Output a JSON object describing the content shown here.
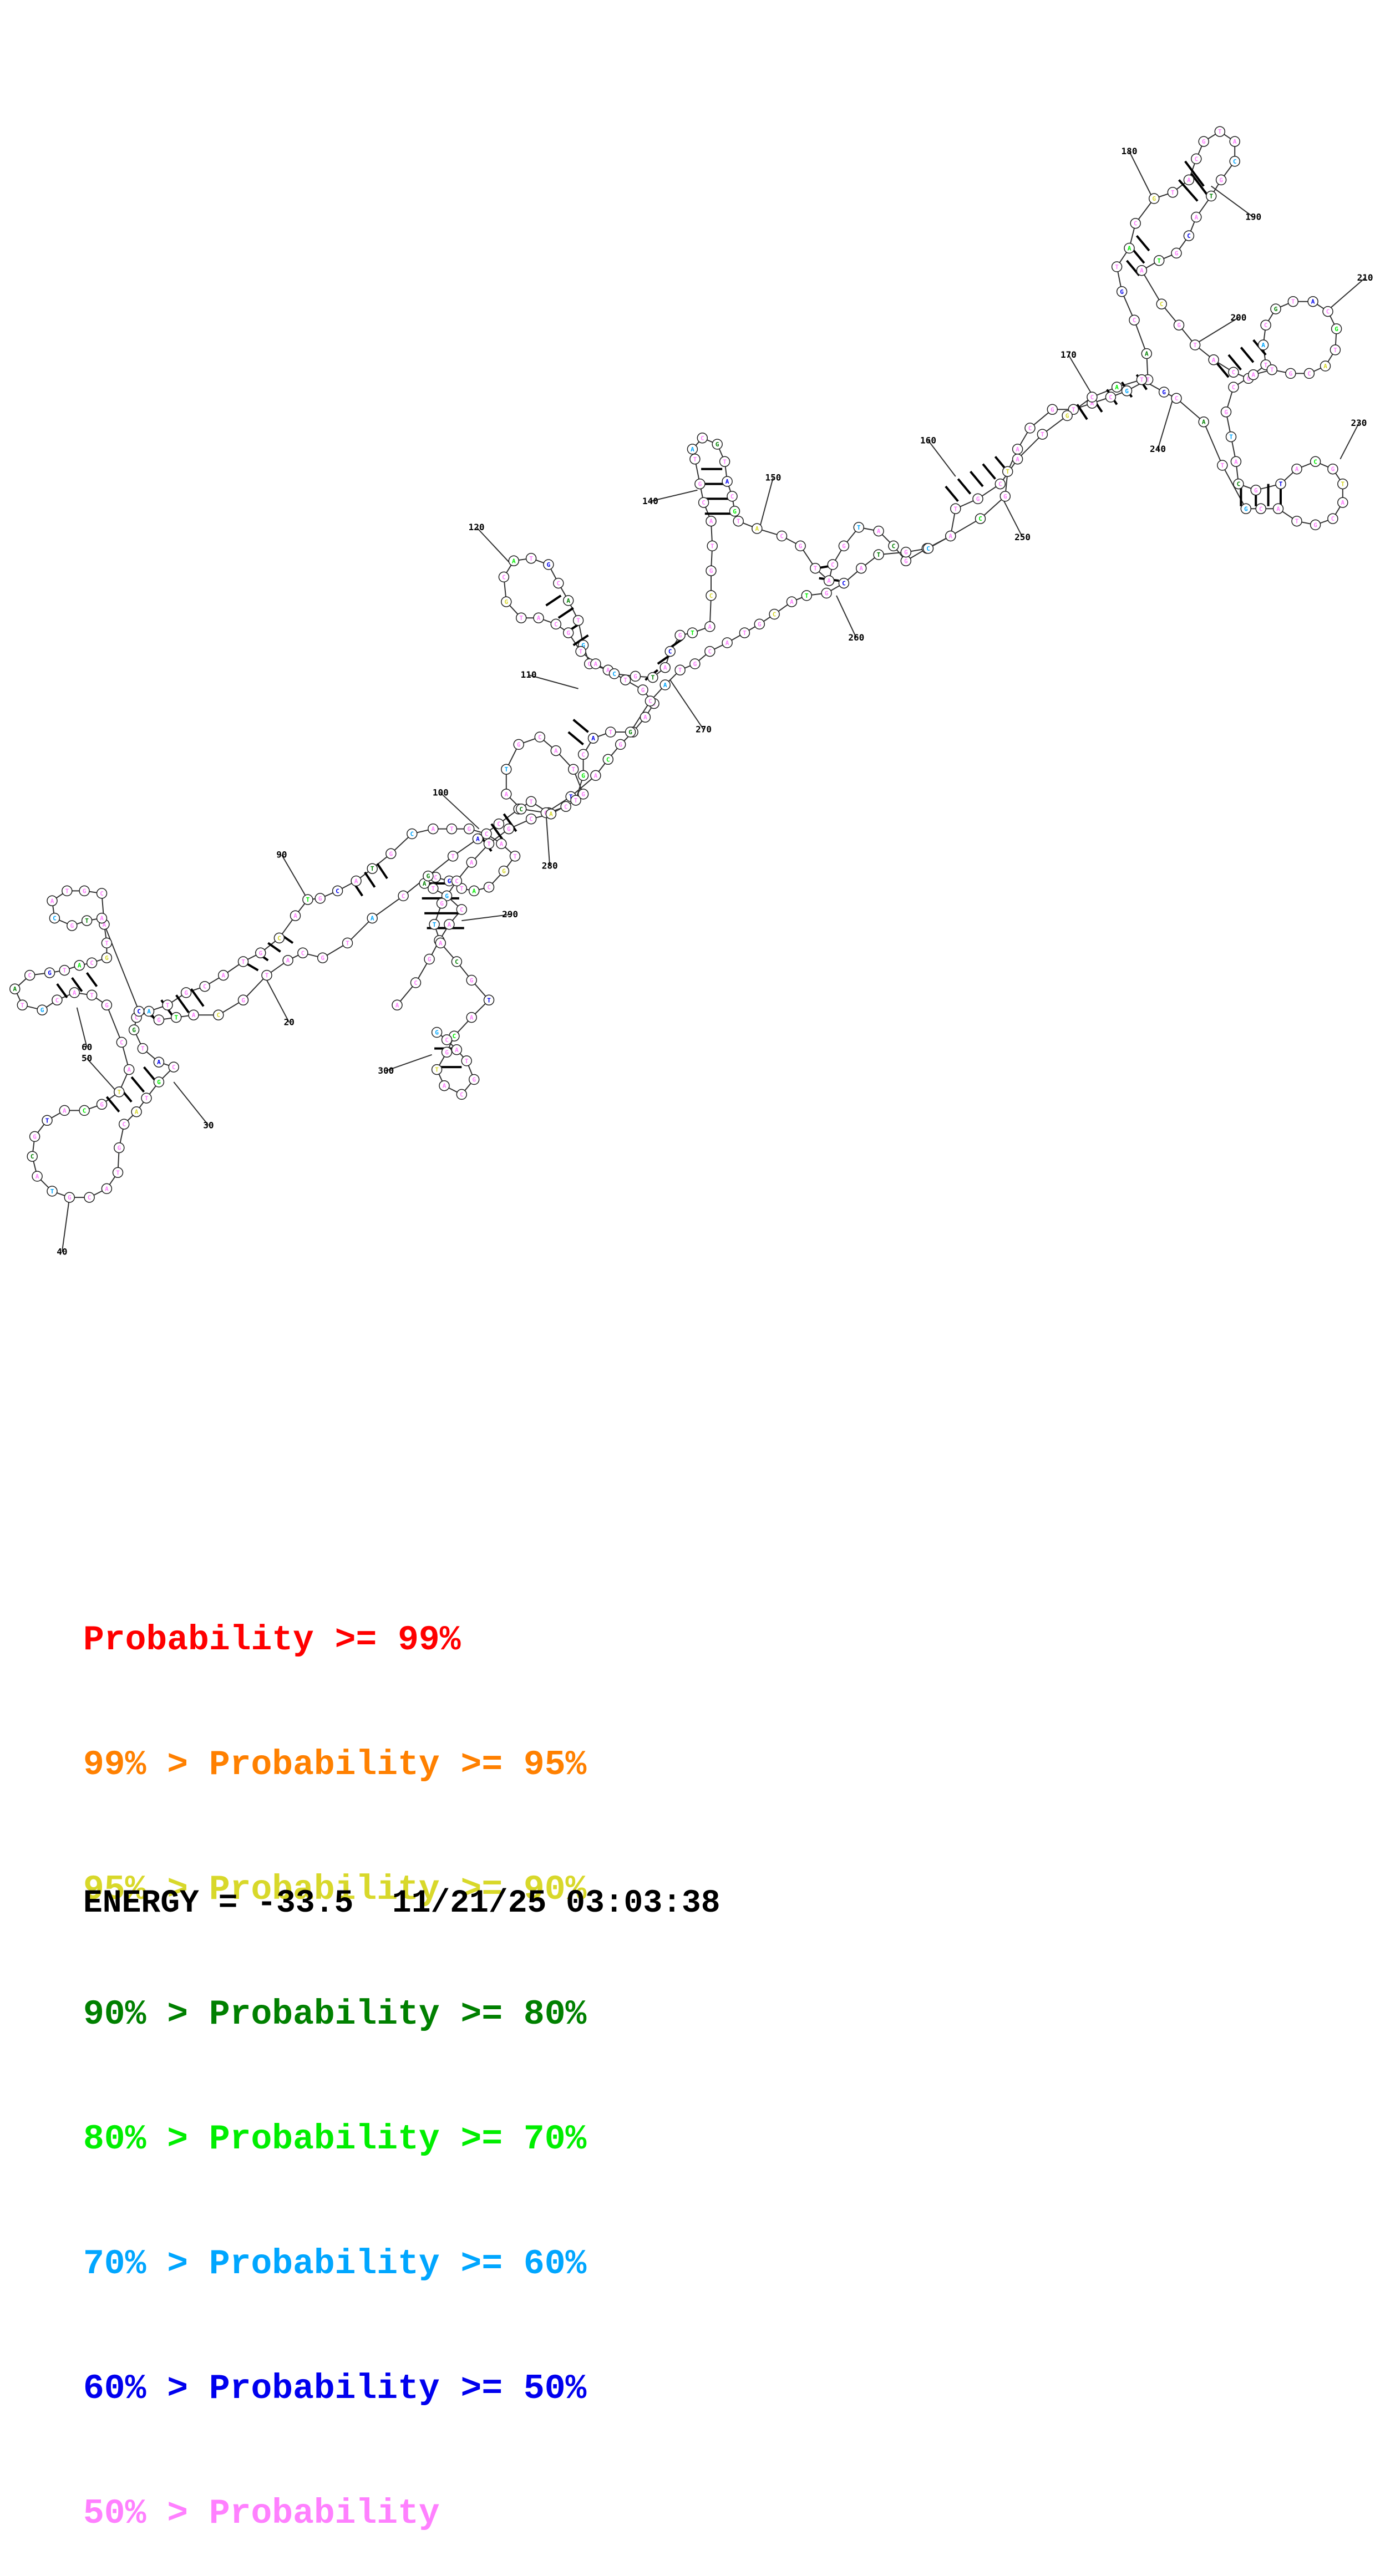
{
  "diagram": {
    "colors": {
      "p99": "#ff0000",
      "p95": "#ff8000",
      "p90": "#d8d82a",
      "p80": "#008000",
      "p70": "#00ee00",
      "p60": "#00a6ff",
      "p50": "#0000ee",
      "plow": "#ff80ff"
    },
    "position_labels": [
      "20",
      "30",
      "40",
      "50",
      "60",
      "90",
      "100",
      "110",
      "120",
      "140",
      "150",
      "160",
      "170",
      "180",
      "190",
      "200",
      "210",
      "230",
      "240",
      "250",
      "260",
      "270",
      "280",
      "290",
      "300"
    ]
  },
  "legend": {
    "lines": [
      {
        "prefix": "",
        "text": "Probability >= 99%",
        "color_key": "p99"
      },
      {
        "prefix": "99% > ",
        "text": "Probability >= 95%",
        "color_key": "p95"
      },
      {
        "prefix": "95% > ",
        "text": "Probability >= 90%",
        "color_key": "p90"
      },
      {
        "prefix": "90% > ",
        "text": "Probability >= 80%",
        "color_key": "p80"
      },
      {
        "prefix": "80% > ",
        "text": "Probability >= 70%",
        "color_key": "p70"
      },
      {
        "prefix": "70% > ",
        "text": "Probability >= 60%",
        "color_key": "p60"
      },
      {
        "prefix": "60% > ",
        "text": "Probability >= 50%",
        "color_key": "p50"
      },
      {
        "prefix": "50% > ",
        "text": "Probability",
        "color_key": "plow"
      }
    ],
    "energy": "ENERGY = -33.5  11/21/25 03:03:38"
  }
}
